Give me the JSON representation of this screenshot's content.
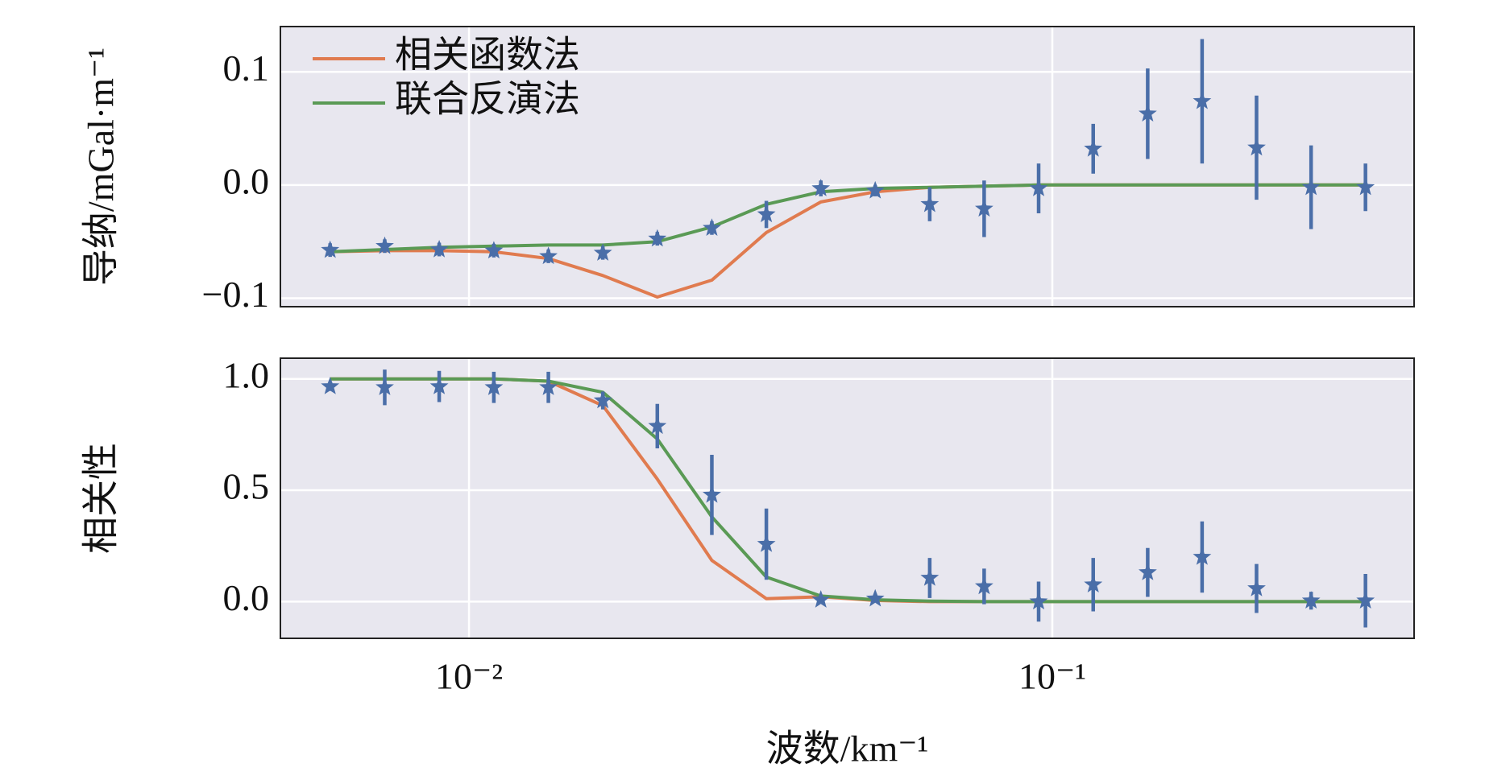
{
  "chart_data": [
    {
      "type": "errorbar_line",
      "ylabel": "导纳/mGal·m⁻¹",
      "legend": "upper left",
      "grid": true,
      "xscale": "log",
      "x": [
        0.00578,
        0.00717,
        0.00889,
        0.01103,
        0.01368,
        0.01696,
        0.02103,
        0.02608,
        0.03234,
        0.0401,
        0.0497,
        0.06163,
        0.0764,
        0.09473,
        0.1175,
        0.1457,
        0.1806,
        0.2239,
        0.2777,
        0.3442
      ],
      "xlim": [
        0.00475,
        0.417
      ],
      "xticks": [
        {
          "value": 0.01,
          "label": "10⁻²"
        },
        {
          "value": 0.1,
          "label": "10⁻¹"
        }
      ],
      "ylim": [
        -0.1075,
        0.14
      ],
      "yticks": [
        {
          "value": -0.1,
          "label": "−0.1"
        },
        {
          "value": 0,
          "label": "0.0"
        },
        {
          "value": 0.1,
          "label": "0.1"
        }
      ],
      "series": [
        {
          "name": "相关函数法",
          "color": "#e07b4f",
          "values": [
            -0.059,
            -0.058,
            -0.058,
            -0.059,
            -0.065,
            -0.08,
            -0.099,
            -0.084,
            -0.042,
            -0.015,
            -0.006,
            -0.002,
            -0.001,
            0,
            0,
            0,
            0,
            0,
            0,
            0
          ]
        },
        {
          "name": "联合反演法",
          "color": "#5a9a55",
          "values": [
            -0.059,
            -0.057,
            -0.055,
            -0.054,
            -0.053,
            -0.053,
            -0.05,
            -0.037,
            -0.017,
            -0.006,
            -0.003,
            -0.002,
            -0.001,
            0,
            0,
            0,
            0,
            0,
            0,
            0
          ]
        }
      ],
      "points": {
        "color": "#4a6ea8",
        "values": [
          -0.0575,
          -0.054,
          -0.057,
          -0.058,
          -0.063,
          -0.06,
          -0.0475,
          -0.038,
          -0.026,
          -0.003,
          -0.005,
          -0.017,
          -0.021,
          -0.003,
          0.032,
          0.063,
          0.074,
          0.033,
          -0.002,
          -0.002
        ],
        "errors": [
          0.006,
          0.006,
          0.006,
          0.006,
          0.006,
          0.006,
          0.006,
          0.006,
          0.012,
          0.007,
          0.005,
          0.015,
          0.025,
          0.022,
          0.022,
          0.04,
          0.055,
          0.046,
          0.037,
          0.021
        ]
      }
    },
    {
      "type": "errorbar_line",
      "ylabel": "相关性",
      "xlabel": "波数/km⁻¹",
      "grid": true,
      "xscale": "log",
      "x": [
        0.00578,
        0.00717,
        0.00889,
        0.01103,
        0.01368,
        0.01696,
        0.02103,
        0.02608,
        0.03234,
        0.0401,
        0.0497,
        0.06163,
        0.0764,
        0.09473,
        0.1175,
        0.1457,
        0.1806,
        0.2239,
        0.2777,
        0.3442
      ],
      "xlim": [
        0.00475,
        0.417
      ],
      "xticks": [
        {
          "value": 0.01,
          "label": "10⁻²"
        },
        {
          "value": 0.1,
          "label": "10⁻¹"
        }
      ],
      "ylim": [
        -0.165,
        1.093
      ],
      "yticks": [
        {
          "value": 0,
          "label": "0.0"
        },
        {
          "value": 0.5,
          "label": "0.5"
        },
        {
          "value": 1,
          "label": "1.0"
        }
      ],
      "series": [
        {
          "color": "#e07b4f",
          "values": [
            1,
            1,
            1,
            1,
            0.99,
            0.88,
            0.55,
            0.185,
            0.013,
            0.022,
            0.005,
            0,
            0,
            0,
            0,
            0,
            0,
            0,
            0,
            0
          ]
        },
        {
          "color": "#5a9a55",
          "values": [
            1,
            1,
            1,
            1,
            0.99,
            0.94,
            0.73,
            0.38,
            0.11,
            0.025,
            0.008,
            0.002,
            0,
            0,
            0,
            0,
            0,
            0,
            0,
            0
          ]
        }
      ],
      "points": {
        "color": "#4a6ea8",
        "values": [
          0.966,
          0.962,
          0.966,
          0.962,
          0.962,
          0.903,
          0.788,
          0.479,
          0.258,
          0.008,
          0.013,
          0.106,
          0.068,
          0,
          0.076,
          0.131,
          0.2,
          0.059,
          0.004,
          0.004
        ],
        "errors": [
          0.02,
          0.08,
          0.07,
          0.07,
          0.07,
          0.04,
          0.1,
          0.18,
          0.16,
          0.01,
          0.01,
          0.09,
          0.08,
          0.09,
          0.12,
          0.11,
          0.16,
          0.11,
          0.04,
          0.12
        ]
      }
    }
  ]
}
